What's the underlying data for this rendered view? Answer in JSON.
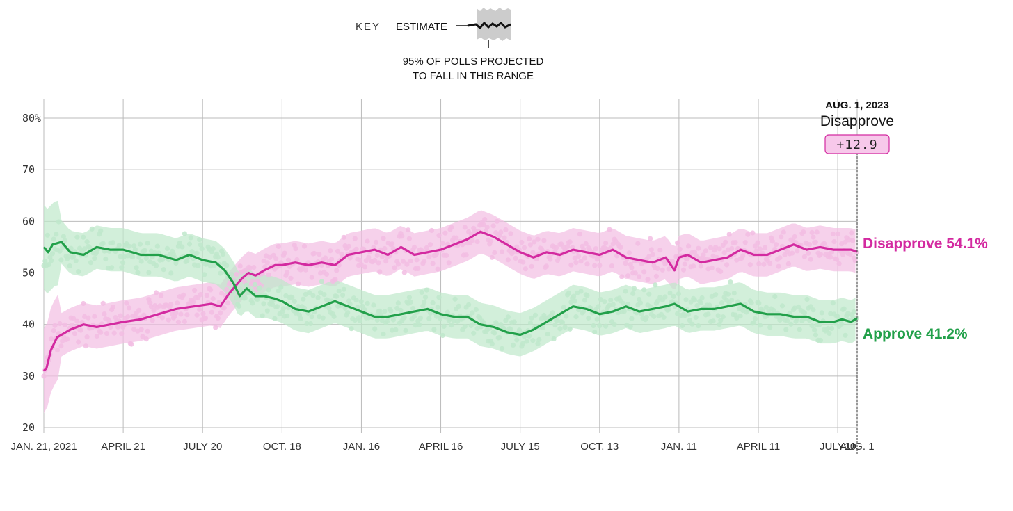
{
  "key": {
    "label": "KEY",
    "estimate_label": "ESTIMATE",
    "range_line1": "95% OF POLLS PROJECTED",
    "range_line2": "TO FALL IN THIS RANGE"
  },
  "colors": {
    "disapprove": "#d32aa0",
    "disapprove_light": "#f2bde3",
    "approve": "#22a04a",
    "approve_light": "#bfe8cb",
    "grid": "#bbbbbb",
    "axis_text": "#333333"
  },
  "callout": {
    "date": "AUG. 1, 2023",
    "label": "Disapprove",
    "margin": "+12.9"
  },
  "chart_data": {
    "type": "line",
    "title": "",
    "ylim": [
      20,
      80
    ],
    "y_ticks": [
      20,
      30,
      40,
      50,
      60,
      70,
      80
    ],
    "y_tick_labels": [
      "20",
      "30",
      "40",
      "50",
      "60",
      "70",
      "80%"
    ],
    "x_ticks": [
      0,
      90,
      180,
      270,
      360,
      450,
      540,
      630,
      720,
      810,
      900,
      922
    ],
    "x_tick_labels": [
      "JAN. 21, 2021",
      "APRIL 21",
      "JULY 20",
      "OCT. 18",
      "JAN. 16",
      "APRIL 16",
      "JULY 15",
      "OCT. 13",
      "JAN. 11",
      "APRIL 11",
      "JULY10",
      "AUG. 1"
    ],
    "x_range_days": [
      0,
      922
    ],
    "series": [
      {
        "name": "Disapprove",
        "end_label": "Disapprove 54.1%",
        "x": [
          0,
          3,
          8,
          15,
          30,
          45,
          60,
          75,
          90,
          110,
          130,
          150,
          170,
          190,
          200,
          210,
          220,
          225,
          232,
          240,
          250,
          262,
          270,
          285,
          300,
          315,
          330,
          345,
          360,
          375,
          390,
          405,
          420,
          435,
          450,
          465,
          480,
          495,
          510,
          525,
          540,
          555,
          570,
          585,
          600,
          615,
          630,
          645,
          660,
          675,
          690,
          705,
          715,
          720,
          730,
          745,
          760,
          775,
          790,
          805,
          820,
          835,
          850,
          865,
          880,
          895,
          905,
          915,
          922
        ],
        "values": [
          31,
          31.5,
          35,
          37.5,
          39,
          40,
          39.5,
          40,
          40.5,
          41,
          42,
          43,
          43.5,
          44,
          43.5,
          46,
          48,
          49,
          50,
          49.5,
          50.5,
          51.5,
          51.5,
          52,
          51.5,
          52,
          51.5,
          53.5,
          54,
          54.5,
          53.5,
          55,
          53.5,
          54,
          54.5,
          55.5,
          56.5,
          58,
          57,
          55.5,
          54,
          53,
          54,
          53.5,
          54.5,
          54,
          53.5,
          54.5,
          53,
          52.5,
          52,
          53,
          50.5,
          53,
          53.5,
          52,
          52.5,
          53,
          54.5,
          53.5,
          53.5,
          54.5,
          55.5,
          54.5,
          55,
          54.5,
          54.5,
          54.5,
          54.1
        ]
      },
      {
        "name": "Approve",
        "end_label": "Approve 41.2%",
        "x": [
          0,
          5,
          10,
          20,
          30,
          45,
          60,
          75,
          90,
          110,
          130,
          150,
          165,
          180,
          195,
          205,
          215,
          222,
          230,
          240,
          250,
          262,
          270,
          285,
          300,
          315,
          330,
          345,
          360,
          375,
          390,
          405,
          420,
          435,
          450,
          465,
          480,
          495,
          510,
          525,
          540,
          555,
          570,
          585,
          600,
          615,
          630,
          645,
          660,
          675,
          690,
          705,
          715,
          730,
          745,
          760,
          775,
          790,
          805,
          820,
          835,
          850,
          865,
          880,
          895,
          905,
          915,
          922
        ],
        "values": [
          55,
          54,
          55.5,
          56,
          54,
          53.5,
          55,
          54.5,
          54.5,
          53.5,
          53.5,
          52.5,
          53.5,
          52.5,
          52,
          50.5,
          48,
          45.5,
          47,
          45.5,
          45.5,
          45,
          44.5,
          43,
          42.5,
          43.5,
          44.5,
          43.5,
          42.5,
          41.5,
          41.5,
          42,
          42.5,
          43,
          42,
          41.5,
          41.5,
          40,
          39.5,
          38.5,
          38,
          39,
          40.5,
          42,
          43.5,
          43,
          42,
          42.5,
          43.5,
          42.5,
          43,
          43.5,
          44,
          42.5,
          43,
          43,
          43.5,
          44,
          42.5,
          42,
          42,
          41.5,
          41.5,
          40.5,
          40.5,
          41,
          40.5,
          41.2
        ]
      }
    ]
  }
}
